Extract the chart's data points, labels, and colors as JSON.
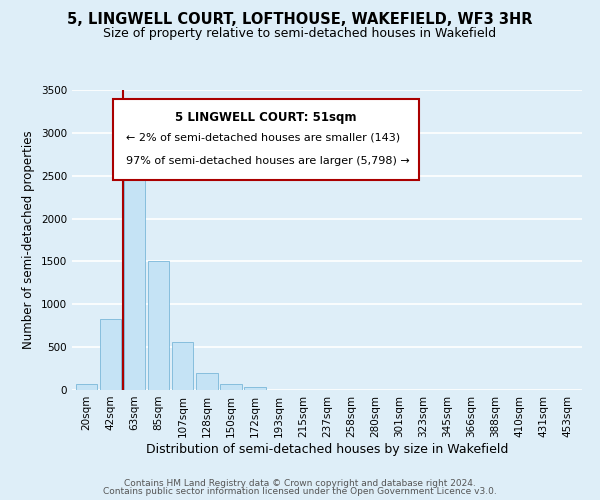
{
  "title": "5, LINGWELL COURT, LOFTHOUSE, WAKEFIELD, WF3 3HR",
  "subtitle": "Size of property relative to semi-detached houses in Wakefield",
  "bar_labels": [
    "20sqm",
    "42sqm",
    "63sqm",
    "85sqm",
    "107sqm",
    "128sqm",
    "150sqm",
    "172sqm",
    "193sqm",
    "215sqm",
    "237sqm",
    "258sqm",
    "280sqm",
    "301sqm",
    "323sqm",
    "345sqm",
    "366sqm",
    "388sqm",
    "410sqm",
    "431sqm",
    "453sqm"
  ],
  "bar_values": [
    65,
    830,
    2780,
    1500,
    555,
    195,
    65,
    40,
    0,
    0,
    0,
    0,
    0,
    0,
    0,
    0,
    0,
    0,
    0,
    0,
    0
  ],
  "bar_color": "#c5e3f5",
  "bar_edgecolor": "#7ab8d9",
  "fig_facecolor": "#deeef8",
  "ax_facecolor": "#deeef8",
  "grid_color": "#ffffff",
  "ylabel": "Number of semi-detached properties",
  "xlabel": "Distribution of semi-detached houses by size in Wakefield",
  "ylim": [
    0,
    3500
  ],
  "yticks": [
    0,
    500,
    1000,
    1500,
    2000,
    2500,
    3000,
    3500
  ],
  "marker_color": "#aa0000",
  "annotation_line1": "5 LINGWELL COURT: 51sqm",
  "annotation_line2": "← 2% of semi-detached houses are smaller (143)",
  "annotation_line3": "97% of semi-detached houses are larger (5,798) →",
  "footer1": "Contains HM Land Registry data © Crown copyright and database right 2024.",
  "footer2": "Contains public sector information licensed under the Open Government Licence v3.0.",
  "title_fontsize": 10.5,
  "subtitle_fontsize": 9,
  "ylabel_fontsize": 8.5,
  "xlabel_fontsize": 9,
  "tick_fontsize": 7.5,
  "annot_fontsize1": 8.5,
  "annot_fontsize2": 8,
  "footer_fontsize": 6.5
}
